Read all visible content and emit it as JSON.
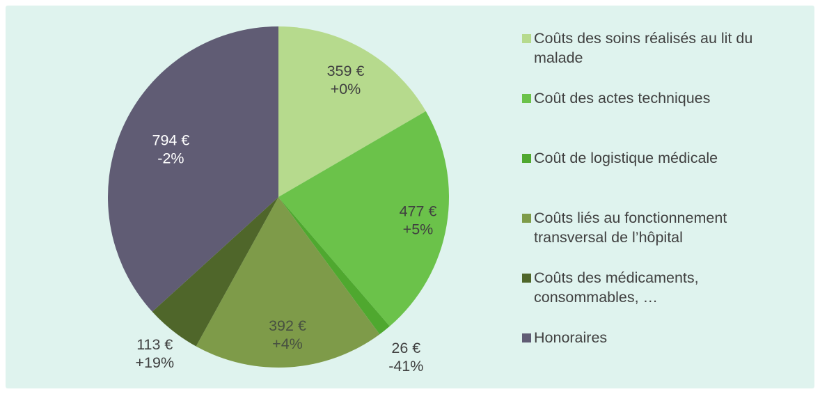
{
  "page": {
    "background_color": "#dff3ee"
  },
  "chart_data": {
    "type": "pie",
    "title": "",
    "unit": "€",
    "direction": "clockwise",
    "start_angle_deg": 0,
    "legend_position": "right",
    "total_value": 2161,
    "slices": [
      {
        "label": "Coûts des soins réalisés au lit du malade",
        "value": 359,
        "value_label": "359 €",
        "change_label": "+0%",
        "color": "#b6da8d",
        "text_color": "#404040",
        "label_placement": "inside",
        "label_r": 0.79
      },
      {
        "label": "Coût des actes techniques",
        "value": 477,
        "value_label": "477 €",
        "change_label": "+5%",
        "color": "#6bc24a",
        "text_color": "#404040",
        "label_placement": "inside",
        "label_r": 0.83
      },
      {
        "label": "Coût de logistique médicale",
        "value": 26,
        "value_label": "26 €",
        "change_label": "-41%",
        "color": "#4fa82f",
        "text_color": "#404040",
        "label_placement": "outside",
        "label_r": 1.2
      },
      {
        "label": "Coûts liés au fonctionnement transversal de l’hôpital",
        "value": 392,
        "value_label": "392 €",
        "change_label": "+4%",
        "color": "#7e9b49",
        "text_color": "#475041",
        "label_placement": "inside",
        "label_r": 0.81
      },
      {
        "label": "Coûts des médicaments, consommables, …",
        "value": 113,
        "value_label": "113 €",
        "change_label": "+19%",
        "color": "#4f662a",
        "text_color": "#404040",
        "label_placement": "outside",
        "label_r": 1.17
      },
      {
        "label": "Honoraires",
        "value": 794,
        "value_label": "794 €",
        "change_label": "-2%",
        "color": "#605c74",
        "text_color": "#ffffff",
        "label_placement": "inside",
        "label_r": 0.69
      }
    ]
  }
}
